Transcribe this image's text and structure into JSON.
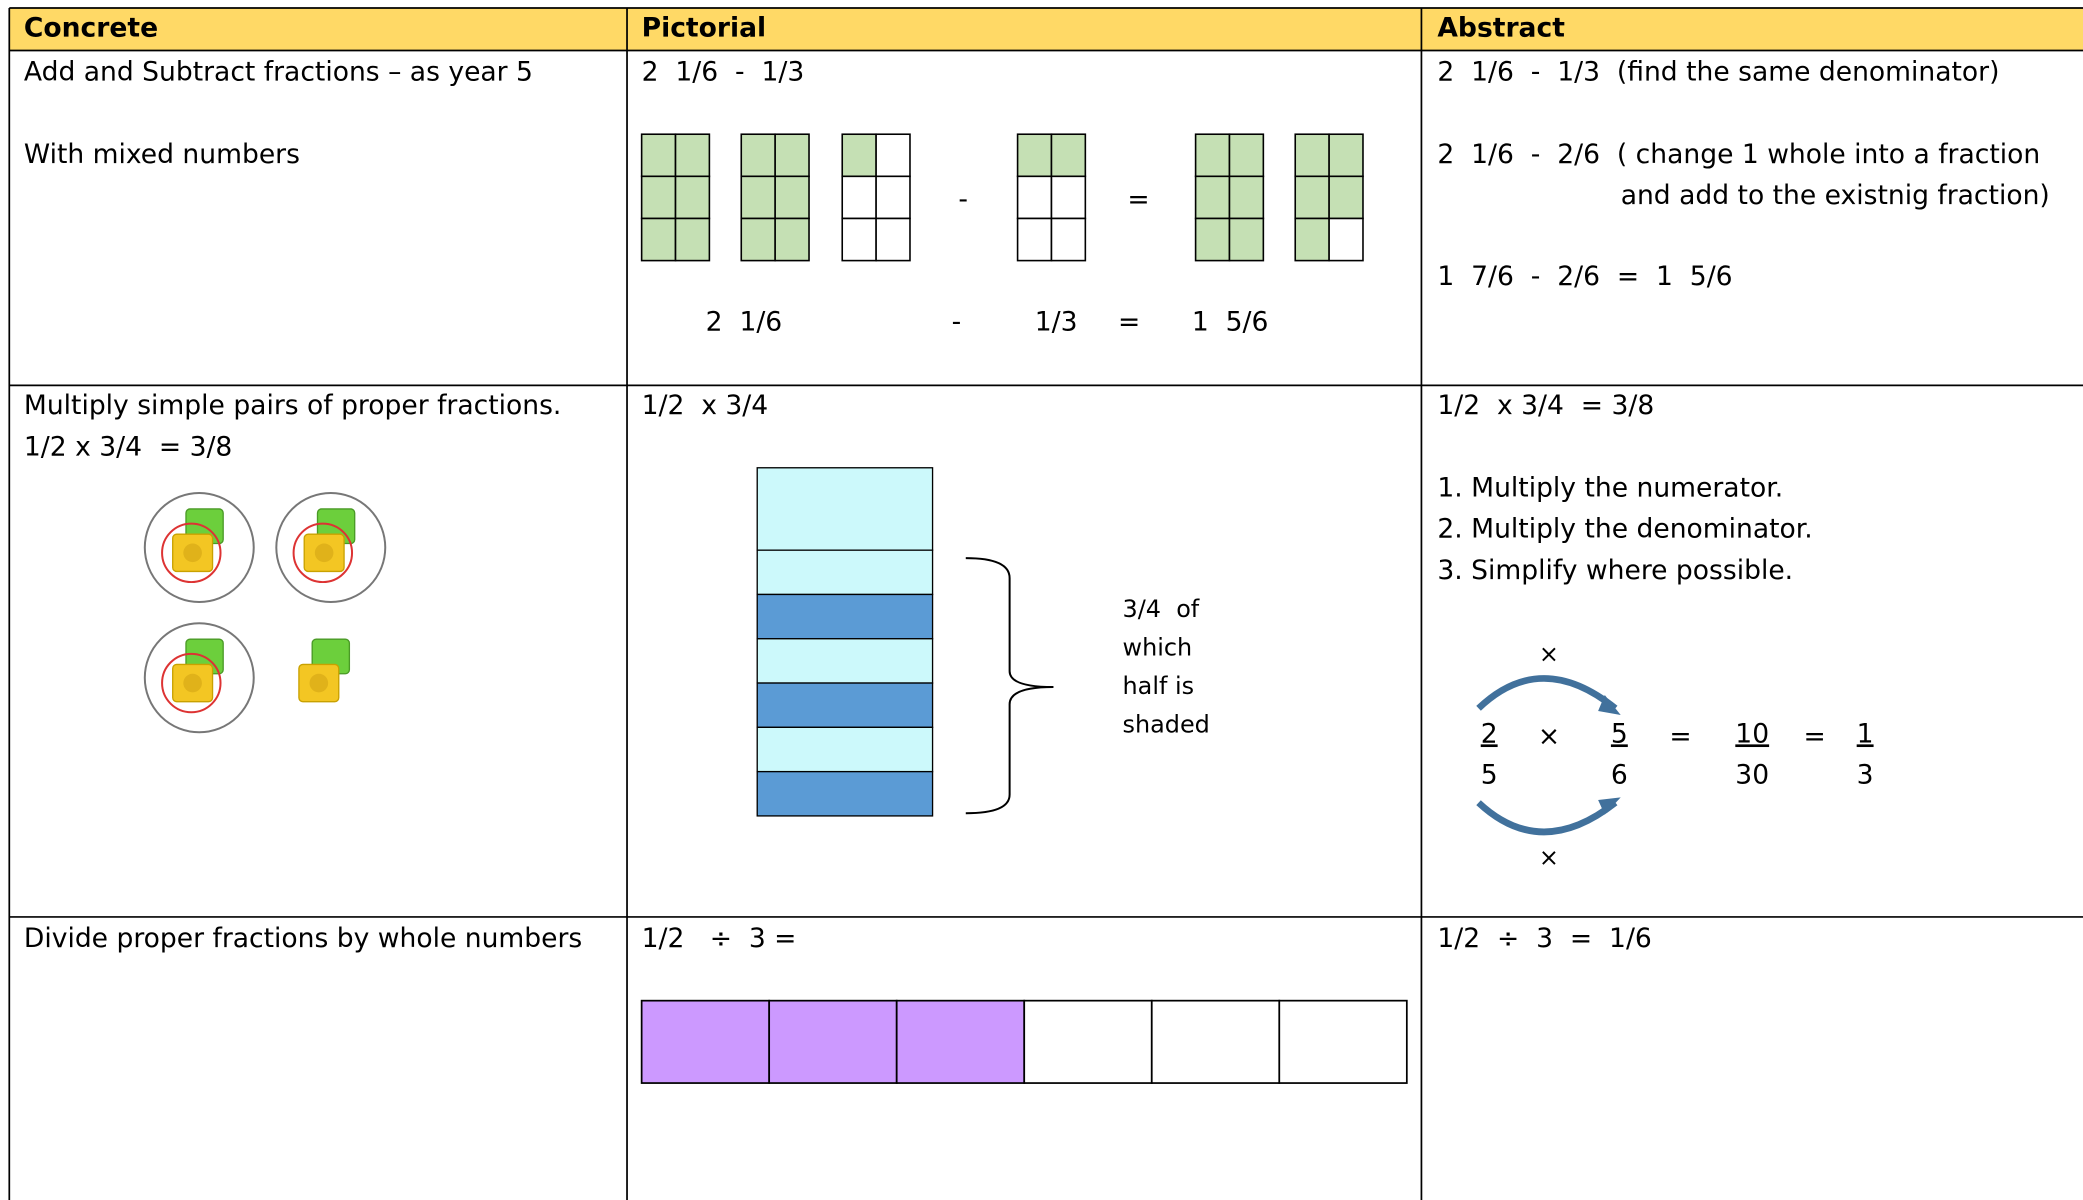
{
  "table": {
    "columns": [
      "Concrete",
      "Pictorial",
      "Abstract"
    ],
    "rows": [
      {
        "concrete": [
          "Add and Subtract fractions – as year 5",
          "With mixed numbers"
        ],
        "pictorial": {
          "expression": "2  1/6  -  1/3",
          "minus": "-",
          "equals": "=",
          "labels": [
            "2  1/6",
            "-",
            "1/3",
            "=",
            "1  5/6"
          ]
        },
        "abstract": [
          "2  1/6  -  1/3  (find the same denominator)",
          "2  1/6  -  2/6  ( change 1 whole into a fraction",
          "and add to the existnig fraction)",
          "1  7/6  -  2/6  =  1  5/6"
        ]
      },
      {
        "concrete": [
          "Multiply simple pairs of proper fractions.",
          "1/2 x 3/4  = 3/8"
        ],
        "pictorial": {
          "expression": "1/2  x 3/4",
          "note": [
            "3/4  of",
            "which",
            "half is",
            "shaded"
          ]
        },
        "abstract": {
          "lines": [
            "1/2  x 3/4  = 3/8",
            "1. Multiply the numerator.",
            "2. Multiply the denominator.",
            "3. Simplify where possible."
          ],
          "operator_top": "×",
          "operator_bottom": "×",
          "equation": [
            {
              "numerator": 2,
              "denominator": 5
            },
            "×",
            {
              "numerator": 5,
              "denominator": 6
            },
            "=",
            {
              "numerator": 10,
              "denominator": 30
            },
            "=",
            {
              "numerator": 1,
              "denominator": 3
            }
          ]
        }
      },
      {
        "concrete": [
          "Divide proper fractions by whole numbers"
        ],
        "pictorial": {
          "expression": "1/2   ÷  3 ="
        },
        "abstract": [
          "1/2  ÷  3  =  1/6"
        ]
      }
    ]
  }
}
